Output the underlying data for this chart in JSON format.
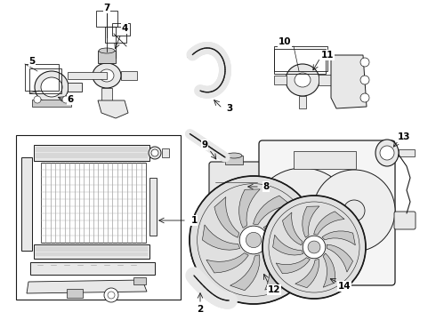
{
  "bg_color": "#ffffff",
  "line_color": "#1a1a1a",
  "gray_light": "#cccccc",
  "gray_med": "#999999",
  "gray_fill": "#e8e8e8",
  "label_fontsize": 7.5,
  "lw": 0.8
}
